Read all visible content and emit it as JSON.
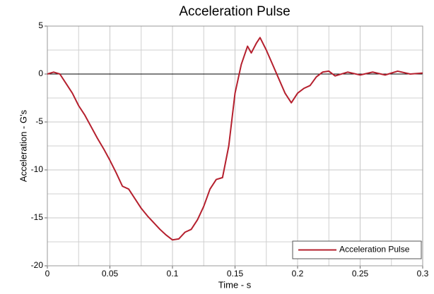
{
  "chart_data": {
    "type": "line",
    "title": "Acceleration Pulse",
    "x_label": "Time - s",
    "y_label": "Acceleration - G's",
    "x": [
      0,
      0.005,
      0.01,
      0.015,
      0.02,
      0.025,
      0.03,
      0.035,
      0.04,
      0.045,
      0.05,
      0.055,
      0.06,
      0.065,
      0.07,
      0.075,
      0.08,
      0.085,
      0.09,
      0.095,
      0.1,
      0.105,
      0.11,
      0.115,
      0.12,
      0.125,
      0.13,
      0.135,
      0.14,
      0.145,
      0.15,
      0.155,
      0.16,
      0.163,
      0.167,
      0.17,
      0.175,
      0.18,
      0.185,
      0.19,
      0.195,
      0.2,
      0.205,
      0.21,
      0.215,
      0.22,
      0.225,
      0.23,
      0.24,
      0.25,
      0.26,
      0.27,
      0.28,
      0.29,
      0.3
    ],
    "series": [
      {
        "name": "Acceleration Pulse",
        "color": "#b5202e",
        "values": [
          0,
          0.2,
          0,
          -1,
          -2,
          -3.3,
          -4.3,
          -5.5,
          -6.7,
          -7.8,
          -9,
          -10.3,
          -11.7,
          -12,
          -13,
          -14,
          -14.8,
          -15.5,
          -16.2,
          -16.8,
          -17.3,
          -17.2,
          -16.5,
          -16.2,
          -15.2,
          -13.8,
          -12,
          -11,
          -10.8,
          -7.5,
          -2,
          1,
          2.9,
          2.2,
          3.2,
          3.8,
          2.5,
          1,
          -0.5,
          -2,
          -3,
          -2,
          -1.5,
          -1.2,
          -0.3,
          0.2,
          0.3,
          -0.2,
          0.2,
          -0.1,
          0.2,
          -0.1,
          0.3,
          0,
          0.1
        ]
      }
    ],
    "xlim": [
      0,
      0.3
    ],
    "xticks": [
      0,
      0.05,
      0.1,
      0.15,
      0.2,
      0.25,
      0.3
    ],
    "ylim": [
      -20,
      5
    ],
    "yticks": [
      5,
      0,
      -5,
      -10,
      -15,
      -20
    ],
    "grid": true,
    "minor_grid": true,
    "legend": "lower right"
  }
}
